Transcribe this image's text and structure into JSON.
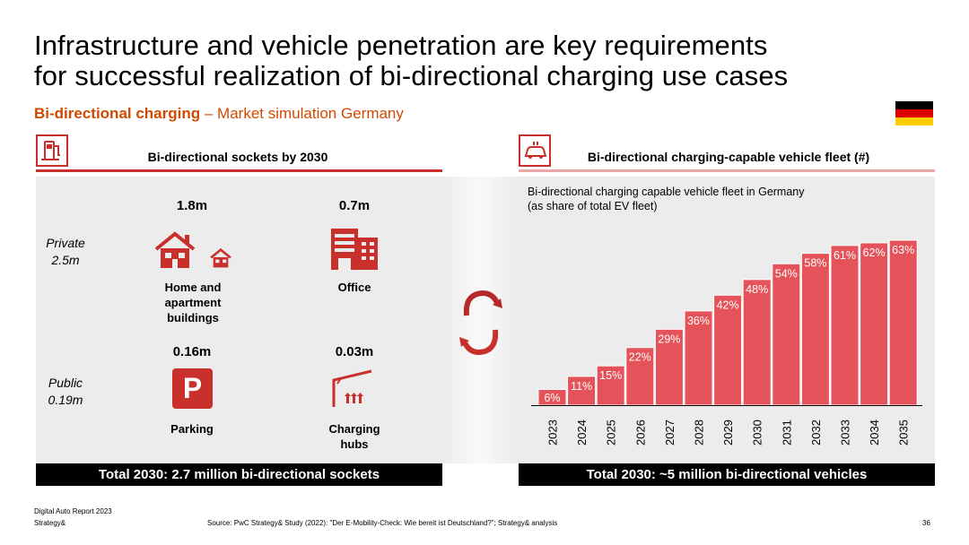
{
  "title_line1": "Infrastructure and vehicle penetration are key requirements",
  "title_line2": "for successful realization of bi-directional charging use cases",
  "subtitle_bold": "Bi-directional charging",
  "subtitle_rest": " – Market simulation Germany",
  "flag_colors": [
    "#000000",
    "#dd0000",
    "#ffce00"
  ],
  "left": {
    "heading": "Bi-directional sockets by 2030",
    "private_label": "Private\n2.5m",
    "public_label": "Public\n0.19m",
    "home_value": "1.8m",
    "home_label": "Home and apartment buildings",
    "office_value": "0.7m",
    "office_label": "Office",
    "parking_value": "0.16m",
    "parking_label": "Parking",
    "parking_letter": "P",
    "hubs_value": "0.03m",
    "hubs_label": "Charging hubs",
    "total": "Total 2030: 2.7 million bi-directional sockets"
  },
  "right": {
    "heading": "Bi-directional charging-capable vehicle fleet (#)",
    "total": "Total 2030: ~5 million bi-directional vehicles"
  },
  "chart_data": {
    "type": "bar",
    "title": "Bi-directional charging capable vehicle fleet in Germany",
    "subtitle": "(as share of total EV fleet)",
    "categories": [
      "2023",
      "2024",
      "2025",
      "2026",
      "2027",
      "2028",
      "2029",
      "2030",
      "2031",
      "2032",
      "2033",
      "2034",
      "2035"
    ],
    "values": [
      6,
      11,
      15,
      22,
      29,
      36,
      42,
      48,
      54,
      58,
      61,
      62,
      63
    ],
    "value_suffix": "%",
    "ylim": [
      0,
      63
    ],
    "bar_color": "#e4535a"
  },
  "footer": {
    "report": "Digital Auto Report 2023",
    "brand": "Strategy&",
    "source": "Source: PwC Strategy& Study (2022): \"Der E-Mobility-Check: Wie bereit ist Deutschland?\"; Strategy& analysis",
    "page": "36"
  }
}
